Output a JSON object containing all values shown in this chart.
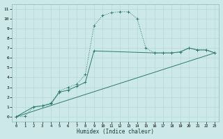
{
  "xlabel": "Humidex (Indice chaleur)",
  "bg_color": "#cce8e8",
  "grid_color": "#b8d8d8",
  "line_color": "#2d7a6e",
  "xlim": [
    -0.5,
    23.5
  ],
  "ylim": [
    -0.5,
    11.5
  ],
  "xticks": [
    0,
    1,
    2,
    3,
    4,
    5,
    6,
    7,
    8,
    9,
    10,
    11,
    12,
    13,
    14,
    15,
    16,
    17,
    18,
    19,
    20,
    21,
    22,
    23
  ],
  "yticks": [
    0,
    1,
    2,
    3,
    4,
    5,
    6,
    7,
    8,
    9,
    10,
    11
  ],
  "line1_x": [
    0,
    1,
    2,
    3,
    4,
    5,
    6,
    7,
    8,
    9,
    10,
    11,
    12,
    13,
    14,
    15,
    16,
    17,
    18,
    19,
    20,
    21,
    22,
    23
  ],
  "line1_y": [
    0.0,
    0.05,
    1.0,
    1.1,
    1.4,
    2.6,
    3.0,
    3.3,
    4.3,
    9.3,
    10.3,
    10.6,
    10.7,
    10.7,
    10.0,
    7.0,
    6.5,
    6.5,
    6.5,
    6.6,
    7.0,
    6.8,
    6.8,
    6.5
  ],
  "line2_x": [
    0,
    2,
    3,
    4,
    5,
    6,
    7,
    8,
    9,
    16,
    17,
    18,
    19,
    20,
    21,
    22,
    23
  ],
  "line2_y": [
    0.0,
    1.0,
    1.1,
    1.3,
    2.5,
    2.7,
    3.1,
    3.5,
    6.7,
    6.5,
    6.5,
    6.5,
    6.6,
    7.0,
    6.8,
    6.8,
    6.5
  ],
  "line3_x": [
    0,
    23
  ],
  "line3_y": [
    0.0,
    6.5
  ]
}
